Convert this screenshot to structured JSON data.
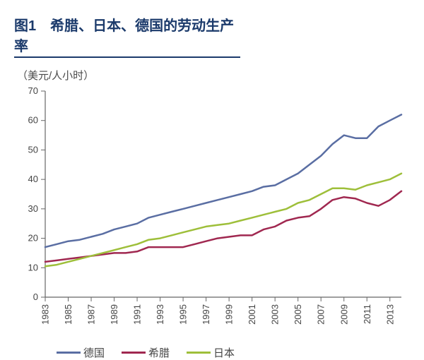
{
  "figure": {
    "label": "图1　希腊、日本、德国的劳动生产率",
    "unit": "（美元/人小时）"
  },
  "chart": {
    "type": "line",
    "background_color": "#ffffff",
    "axis_color": "#666666",
    "tick_color": "#666666",
    "tick_fontsize": 13,
    "line_width": 2.5,
    "ylim": [
      0,
      70
    ],
    "ytick_step": 10,
    "years": [
      1983,
      1984,
      1985,
      1986,
      1987,
      1988,
      1989,
      1990,
      1991,
      1992,
      1993,
      1994,
      1995,
      1996,
      1997,
      1998,
      1999,
      2000,
      2001,
      2002,
      2003,
      2004,
      2005,
      2006,
      2007,
      2008,
      2009,
      2010,
      2011,
      2012,
      2013,
      2014
    ],
    "xtick_years": [
      1983,
      1985,
      1987,
      1989,
      1991,
      1993,
      1995,
      1997,
      1999,
      2001,
      2003,
      2005,
      2007,
      2009,
      2011,
      2013
    ],
    "legend_order": [
      "germany",
      "greece",
      "japan"
    ],
    "series": {
      "germany": {
        "label": "德国",
        "color": "#5a6ea3",
        "values": [
          17,
          18,
          19,
          19.5,
          20.5,
          21.5,
          23,
          24,
          25,
          27,
          28,
          29,
          30,
          31,
          32,
          33,
          34,
          35,
          36,
          37.5,
          38,
          40,
          42,
          45,
          48,
          52,
          55,
          54,
          54,
          58,
          60,
          62
        ]
      },
      "greece": {
        "label": "希腊",
        "color": "#a02850",
        "values": [
          12,
          12.5,
          13,
          13.5,
          14,
          14.5,
          15,
          15,
          15.5,
          17,
          17,
          17,
          17,
          18,
          19,
          20,
          20.5,
          21,
          21,
          23,
          24,
          26,
          27,
          27.5,
          30,
          33,
          34,
          33.5,
          32,
          31,
          33,
          36
        ]
      },
      "japan": {
        "label": "日本",
        "color": "#9ebf3a",
        "values": [
          10.5,
          11,
          12,
          13,
          14,
          15,
          16,
          17,
          18,
          19.5,
          20,
          21,
          22,
          23,
          24,
          24.5,
          25,
          26,
          27,
          28,
          29,
          30,
          32,
          33,
          35,
          37,
          37,
          36.5,
          38,
          39,
          40,
          42
        ]
      }
    }
  }
}
